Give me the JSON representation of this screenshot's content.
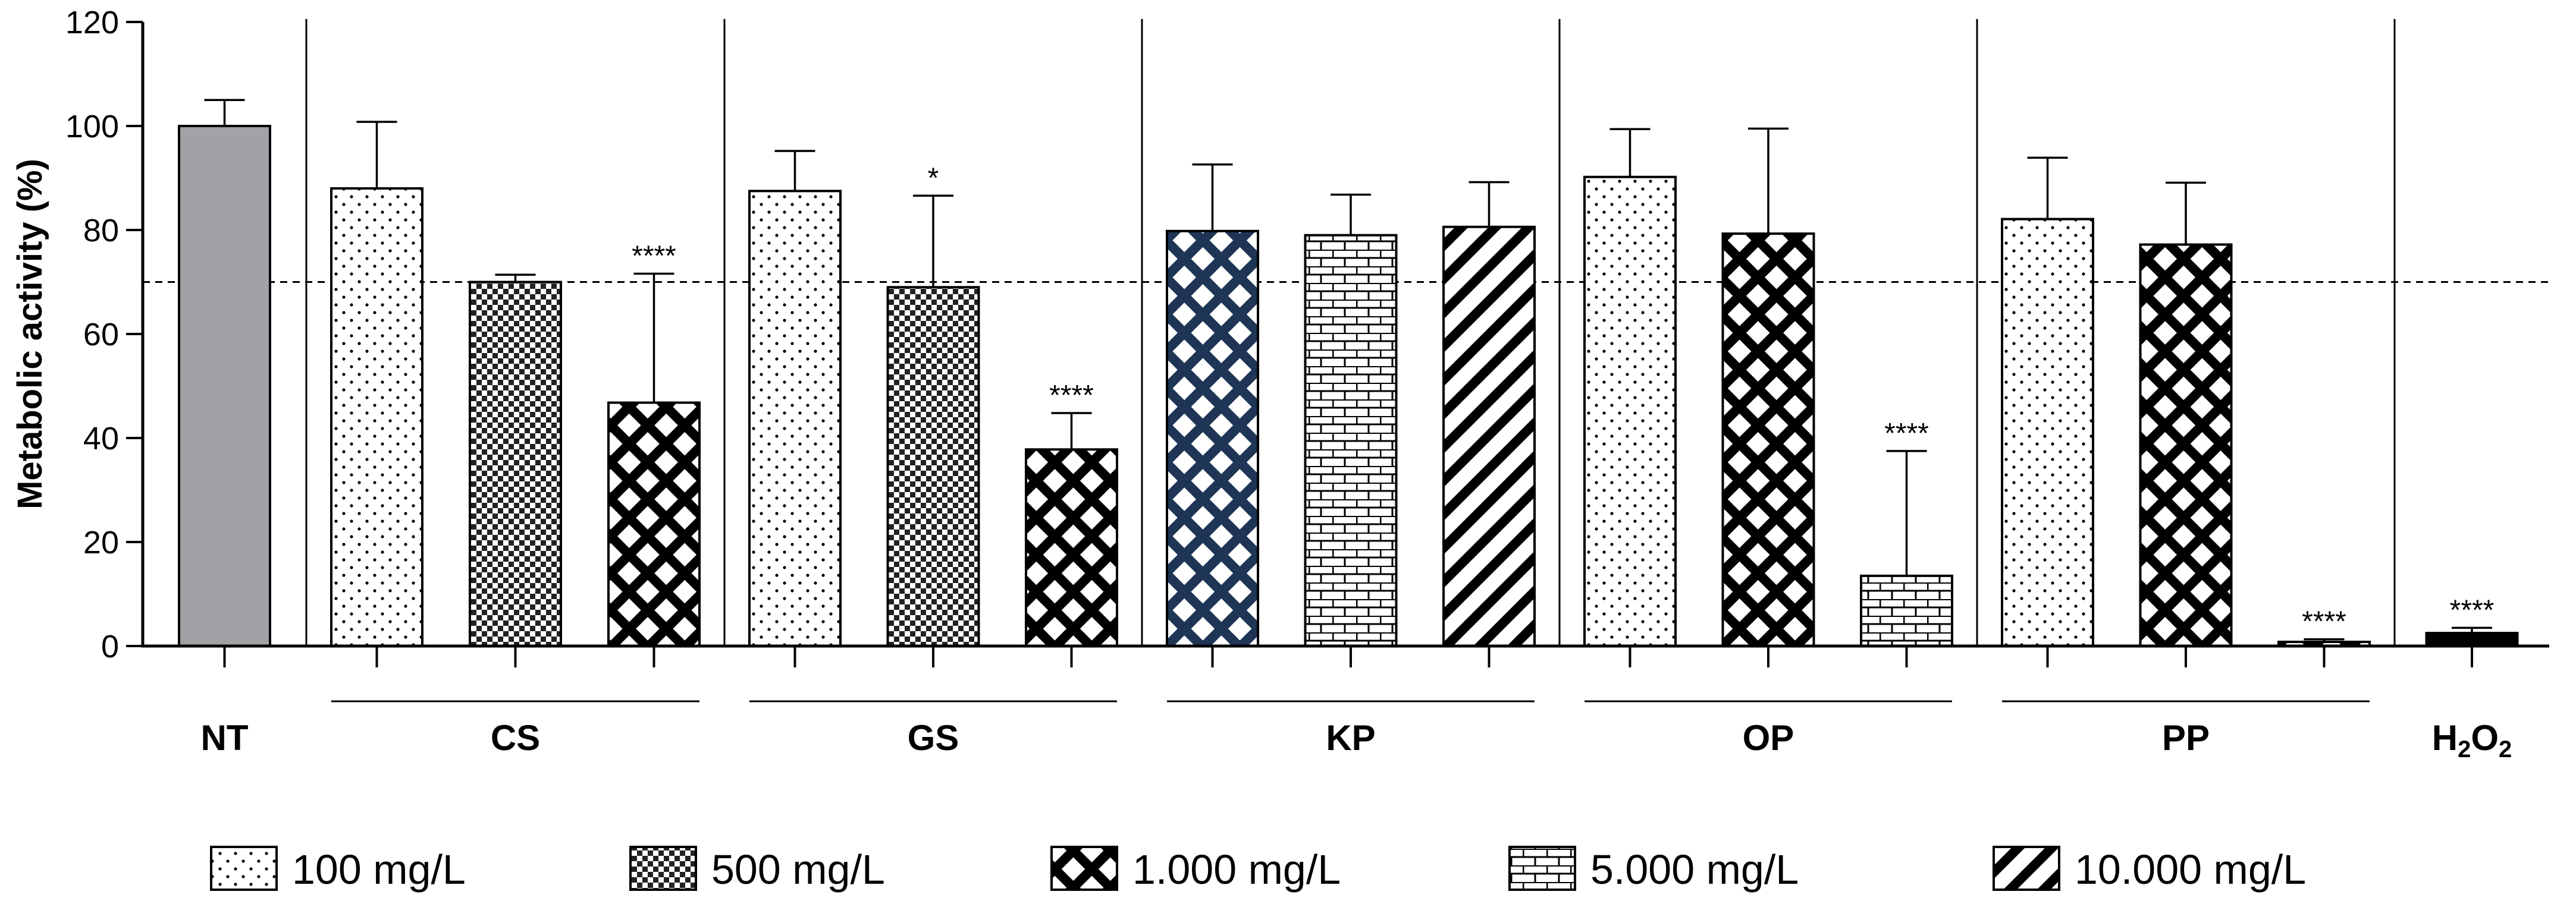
{
  "chart_data": {
    "type": "bar",
    "ylabel": "Metabolic activity (%)",
    "xlabel": "",
    "ylim": [
      0,
      120
    ],
    "yticks": [
      0,
      20,
      40,
      60,
      80,
      100,
      120
    ],
    "threshold": 70,
    "colors": {
      "nt_fill": "#a2a1a6",
      "kp_blue": "#1e3555",
      "dark": "#000000",
      "background": "#ffffff"
    },
    "legend": [
      {
        "label": "100 mg/L",
        "pattern": "dots"
      },
      {
        "label": "500 mg/L",
        "pattern": "checker"
      },
      {
        "label": "1.000 mg/L",
        "pattern": "lattice"
      },
      {
        "label": "5.000 mg/L",
        "pattern": "brick"
      },
      {
        "label": "10.000 mg/L",
        "pattern": "diagonal"
      }
    ],
    "groups": [
      {
        "name": "NT",
        "bars": [
          {
            "concentration": "NT",
            "value": 100,
            "error": 5,
            "pattern": "gray",
            "sig": ""
          }
        ]
      },
      {
        "name": "CS",
        "bars": [
          {
            "concentration": "100 mg/L",
            "value": 88,
            "error": 12.8,
            "pattern": "dots",
            "sig": ""
          },
          {
            "concentration": "500 mg/L",
            "value": 70,
            "error": 1.4,
            "pattern": "checker",
            "sig": ""
          },
          {
            "concentration": "1.000 mg/L",
            "value": 46.8,
            "error": 24.8,
            "pattern": "lattice",
            "sig": "****"
          }
        ]
      },
      {
        "name": "GS",
        "bars": [
          {
            "concentration": "100 mg/L",
            "value": 87.5,
            "error": 7.7,
            "pattern": "dots",
            "sig": ""
          },
          {
            "concentration": "500 mg/L",
            "value": 69,
            "error": 17.6,
            "pattern": "checker",
            "sig": "*"
          },
          {
            "concentration": "1.000 mg/L",
            "value": 37.8,
            "error": 7,
            "pattern": "lattice",
            "sig": "****"
          }
        ]
      },
      {
        "name": "KP",
        "bars": [
          {
            "concentration": "1.000 mg/L",
            "value": 79.8,
            "error": 12.8,
            "pattern": "lattice-blue",
            "sig": ""
          },
          {
            "concentration": "5.000 mg/L",
            "value": 79,
            "error": 7.8,
            "pattern": "brick",
            "sig": ""
          },
          {
            "concentration": "10.000 mg/L",
            "value": 80.6,
            "error": 8.6,
            "pattern": "diagonal",
            "sig": ""
          }
        ]
      },
      {
        "name": "OP",
        "bars": [
          {
            "concentration": "100 mg/L",
            "value": 90.2,
            "error": 9.2,
            "pattern": "dots",
            "sig": ""
          },
          {
            "concentration": "1.000 mg/L",
            "value": 79.3,
            "error": 20.2,
            "pattern": "lattice",
            "sig": ""
          },
          {
            "concentration": "5.000 mg/L",
            "value": 13.5,
            "error": 24,
            "pattern": "brick",
            "sig": "****"
          }
        ]
      },
      {
        "name": "PP",
        "bars": [
          {
            "concentration": "100 mg/L",
            "value": 82.1,
            "error": 11.8,
            "pattern": "dots",
            "sig": ""
          },
          {
            "concentration": "1.000 mg/L",
            "value": 77.2,
            "error": 11.9,
            "pattern": "lattice",
            "sig": ""
          },
          {
            "concentration": "1.000 mg/L",
            "value": 0.8,
            "error": 0.5,
            "pattern": "lattice",
            "sig": "****"
          }
        ]
      },
      {
        "name": "H2O2",
        "bars": [
          {
            "concentration": "H2O2",
            "value": 2.5,
            "error": 1,
            "pattern": "black",
            "sig": "****"
          }
        ]
      }
    ]
  }
}
